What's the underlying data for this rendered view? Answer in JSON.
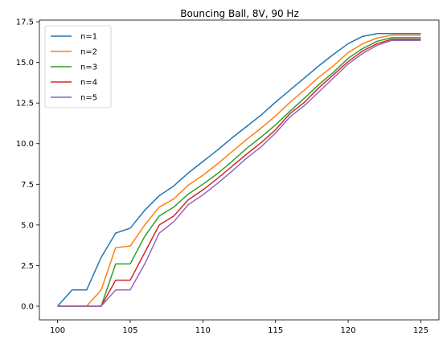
{
  "chart_data": {
    "type": "line",
    "title": "Bouncing Ball, 8V, 90 Hz",
    "xlabel": "",
    "ylabel": "",
    "xlim": [
      98.75,
      126.25
    ],
    "ylim": [
      -0.84,
      17.6
    ],
    "grid": false,
    "legend_position": "top-left",
    "x_ticks": [
      100,
      105,
      110,
      115,
      120,
      125
    ],
    "x_tick_labels": [
      "100",
      "105",
      "110",
      "115",
      "120",
      "125"
    ],
    "y_ticks": [
      0,
      2.5,
      5,
      7.5,
      10,
      12.5,
      15,
      17.5
    ],
    "y_tick_labels": [
      "0.0",
      "2.5",
      "5.0",
      "7.5",
      "10.0",
      "12.5",
      "15.0",
      "17.5"
    ],
    "x": [
      100,
      101,
      102,
      103,
      104,
      105,
      106,
      107,
      108,
      109,
      110,
      111,
      112,
      113,
      114,
      115,
      116,
      117,
      118,
      119,
      120,
      121,
      122,
      123,
      124,
      125
    ],
    "series": [
      {
        "name": "n=1",
        "color": "#1f77b4",
        "values": [
          0,
          1.0,
          1.0,
          3.0,
          4.5,
          4.8,
          5.9,
          6.8,
          7.4,
          8.2,
          8.9,
          9.6,
          10.35,
          11.05,
          11.75,
          12.55,
          13.3,
          14.05,
          14.8,
          15.5,
          16.15,
          16.6,
          16.77,
          16.77,
          16.77,
          16.77
        ]
      },
      {
        "name": "n=2",
        "color": "#ff7f0e",
        "values": [
          0,
          0,
          0,
          1.0,
          3.6,
          3.7,
          5.0,
          6.1,
          6.6,
          7.45,
          8.05,
          8.75,
          9.5,
          10.25,
          10.95,
          11.7,
          12.55,
          13.3,
          14.1,
          14.8,
          15.6,
          16.15,
          16.5,
          16.67,
          16.67,
          16.67
        ]
      },
      {
        "name": "n=3",
        "color": "#2ca02c",
        "values": [
          0,
          0,
          0,
          0,
          2.6,
          2.6,
          4.3,
          5.55,
          6.1,
          6.9,
          7.5,
          8.15,
          8.9,
          9.7,
          10.4,
          11.15,
          12.0,
          12.8,
          13.65,
          14.4,
          15.25,
          15.85,
          16.3,
          16.52,
          16.52,
          16.52
        ]
      },
      {
        "name": "n=4",
        "color": "#d62728",
        "values": [
          0,
          0,
          0,
          0,
          1.6,
          1.6,
          3.3,
          5.0,
          5.55,
          6.55,
          7.15,
          7.85,
          8.6,
          9.35,
          10.05,
          10.85,
          11.85,
          12.55,
          13.45,
          14.25,
          15.05,
          15.7,
          16.15,
          16.42,
          16.42,
          16.42
        ]
      },
      {
        "name": "n=5",
        "color": "#9467bd",
        "values": [
          0,
          0,
          0,
          0,
          1.0,
          1.0,
          2.6,
          4.5,
          5.2,
          6.25,
          6.85,
          7.55,
          8.3,
          9.1,
          9.8,
          10.65,
          11.65,
          12.35,
          13.2,
          14.05,
          14.9,
          15.55,
          16.05,
          16.35,
          16.35,
          16.35
        ]
      }
    ]
  }
}
